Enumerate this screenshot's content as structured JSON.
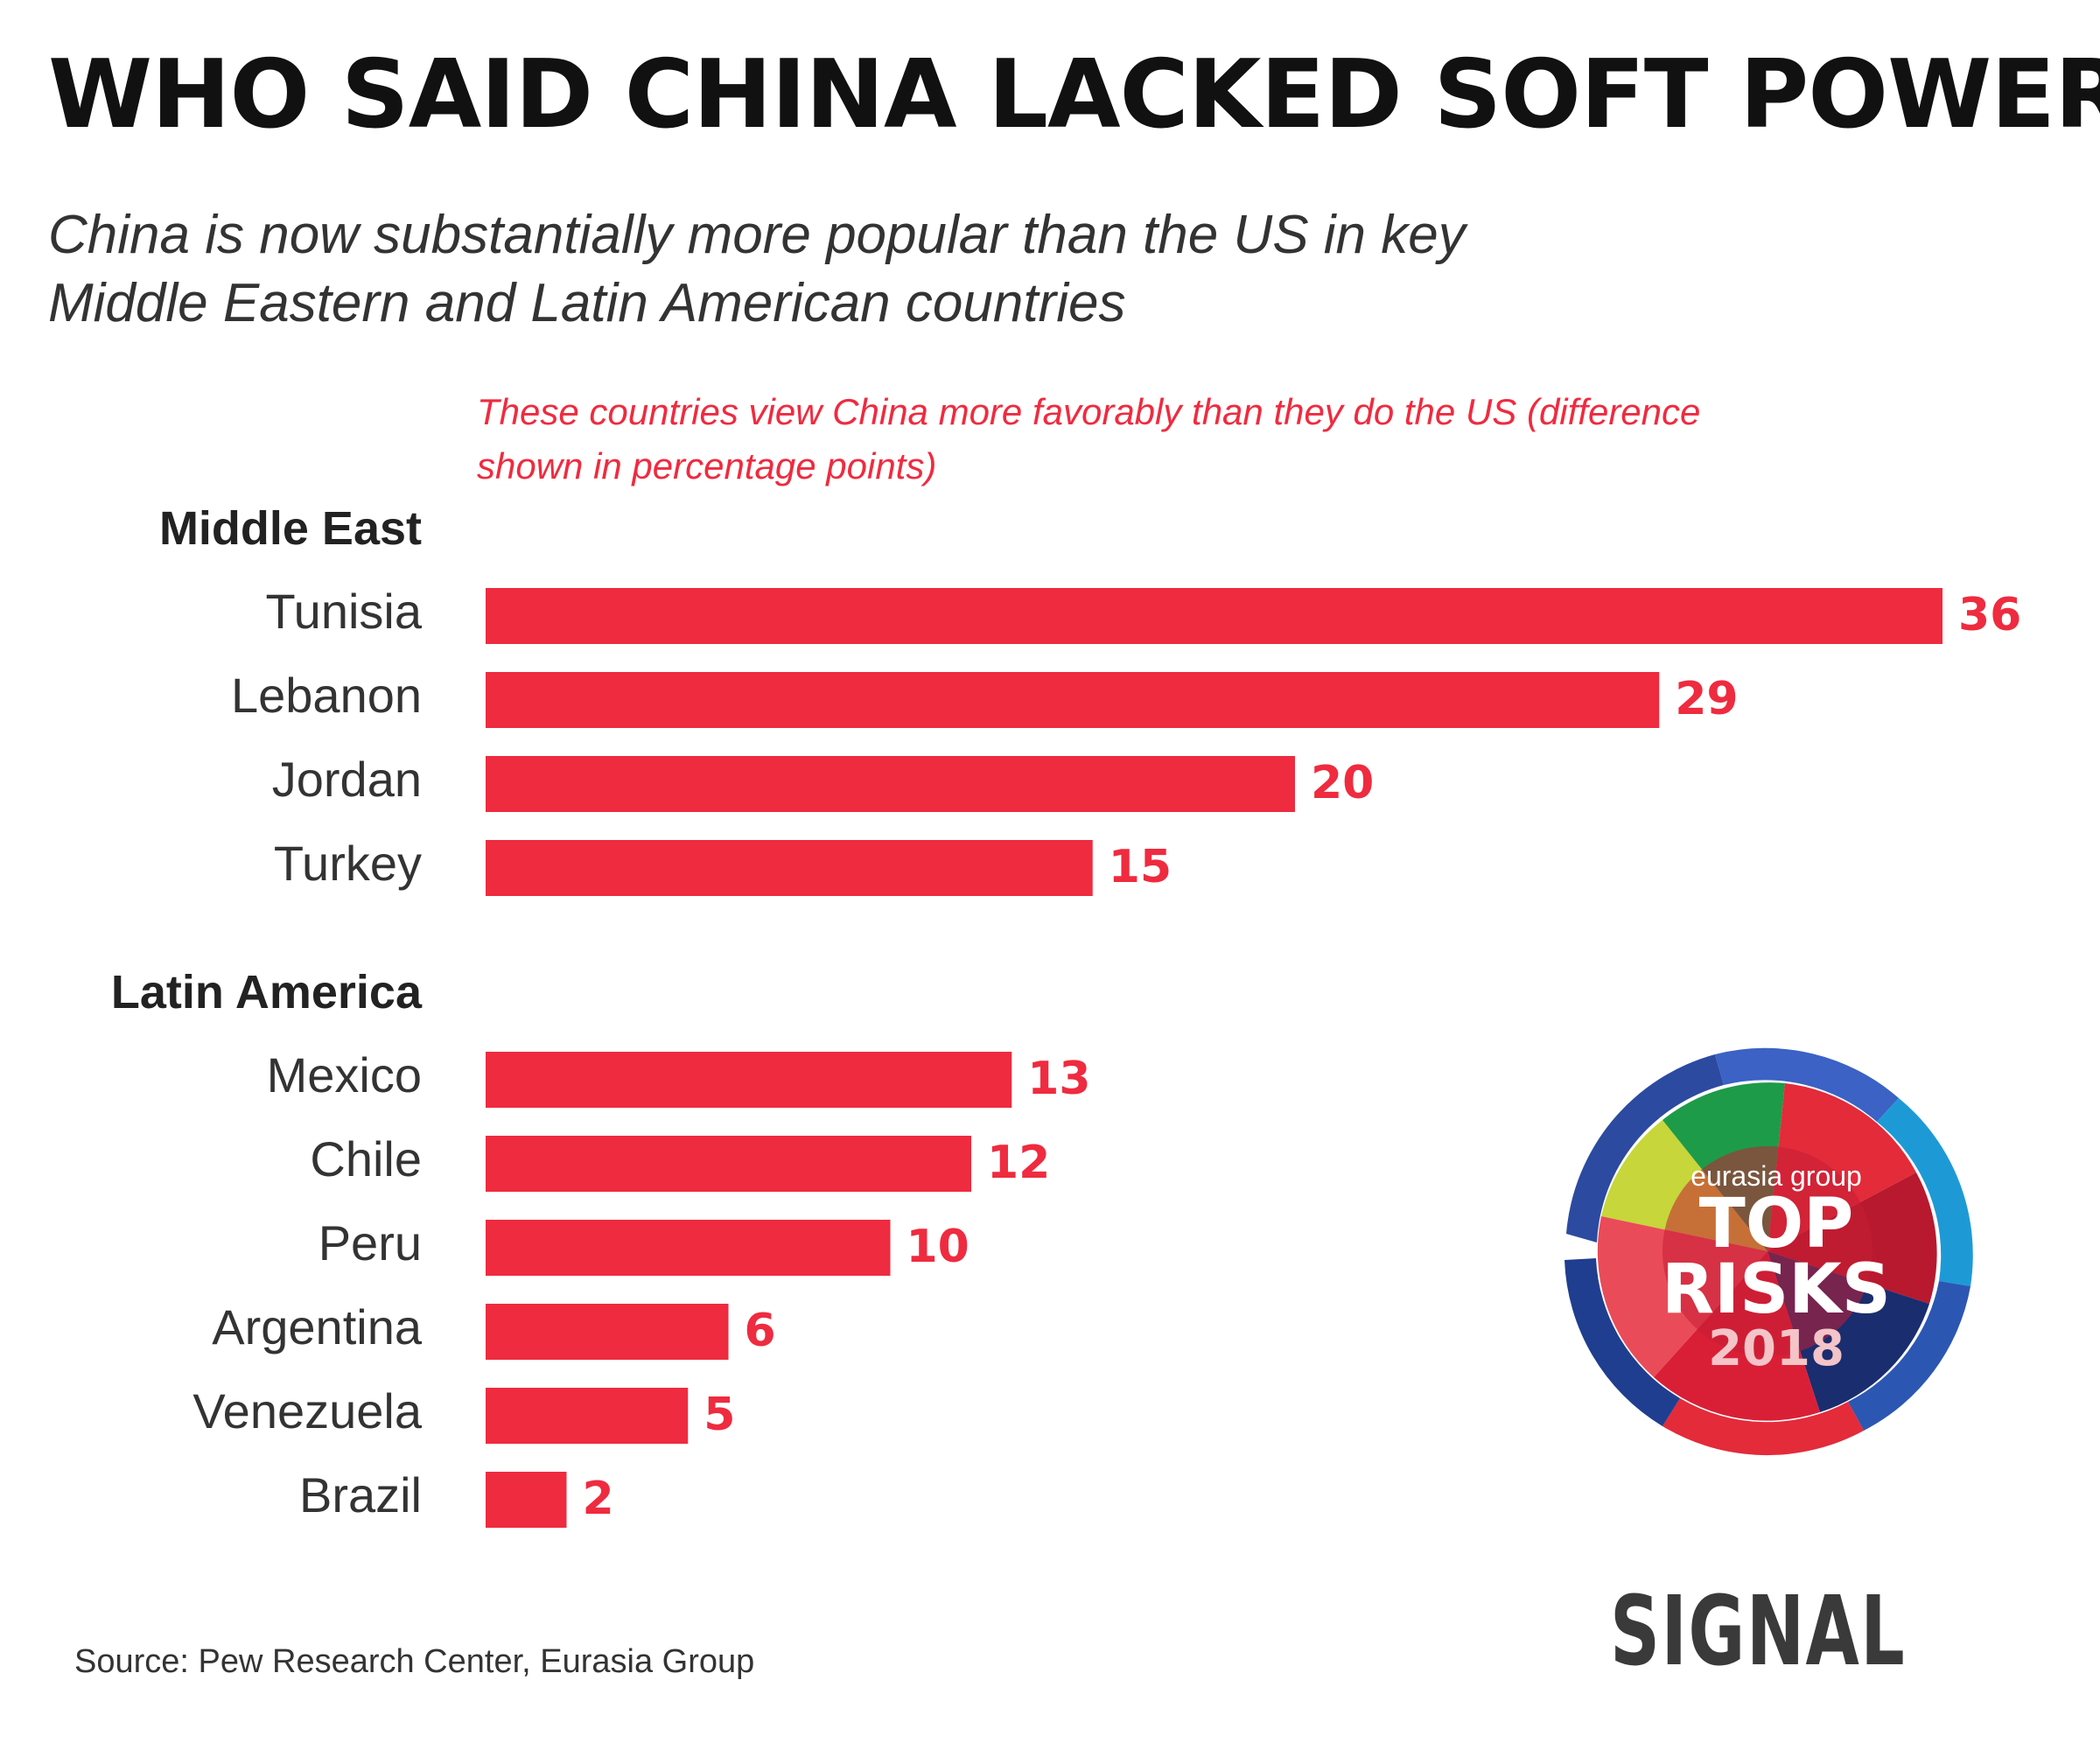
{
  "header": {
    "title": "WHO SAID CHINA LACKED SOFT POWER?",
    "subtitle": "China is now substantially more popular than the US in key Middle Eastern and Latin American countries"
  },
  "colors": {
    "bar": "#ef2b3f",
    "label": "#333333",
    "group": "#222222"
  },
  "chart_data": {
    "type": "bar",
    "orientation": "horizontal",
    "note": "These countries view China more favorably than they do the US (difference shown in percentage points)",
    "xlim": [
      0,
      36
    ],
    "grid": false,
    "groups": [
      {
        "name": "Middle East",
        "categories": [
          "Tunisia",
          "Lebanon",
          "Jordan",
          "Turkey"
        ],
        "values": [
          36,
          29,
          20,
          15
        ]
      },
      {
        "name": "Latin America",
        "categories": [
          "Mexico",
          "Chile",
          "Peru",
          "Argentina",
          "Venezuela",
          "Brazil"
        ],
        "values": [
          13,
          12,
          10,
          6,
          5,
          2
        ]
      }
    ]
  },
  "footer": {
    "source": "Source: Pew Research Center, Eurasia Group",
    "brand": "SIGNAL"
  },
  "logo": {
    "small": "eurasia group",
    "line1": "TOP",
    "line2": "RISKS",
    "year": "2018"
  }
}
